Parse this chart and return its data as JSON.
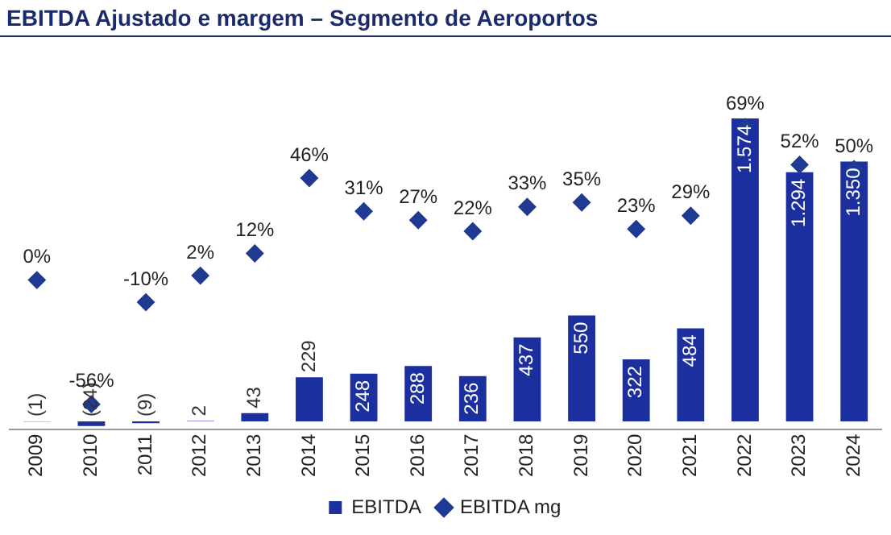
{
  "chart_data": {
    "type": "bar",
    "title": "EBITDA Ajustado e margem – Segmento de Aeroportos",
    "categories": [
      "2009",
      "2010",
      "2011",
      "2012",
      "2013",
      "2014",
      "2015",
      "2016",
      "2017",
      "2018",
      "2019",
      "2020",
      "2021",
      "2022",
      "2023",
      "2024"
    ],
    "series": [
      {
        "name": "EBITDA",
        "color": "#1c2f9e",
        "values": [
          -1,
          -24,
          -9,
          2,
          43,
          229,
          248,
          288,
          236,
          437,
          550,
          322,
          484,
          1574,
          1294,
          1350
        ],
        "value_labels": [
          "(1)",
          "(24)",
          "(9)",
          "2",
          "43",
          "229",
          "248",
          "288",
          "236",
          "437",
          "550",
          "322",
          "484",
          "1.574",
          "1.294",
          "1.350"
        ]
      },
      {
        "name": "EBITDA mg",
        "type": "scatter",
        "axis": "y2",
        "color": "#1f3a93",
        "values": [
          0,
          -56,
          -10,
          2,
          12,
          46,
          31,
          27,
          22,
          33,
          35,
          23,
          29,
          69,
          52,
          50
        ],
        "value_labels": [
          "0%",
          "-56%",
          "-10%",
          "2%",
          "12%",
          "46%",
          "31%",
          "27%",
          "22%",
          "33%",
          "35%",
          "23%",
          "29%",
          "69%",
          "52%",
          "50%"
        ]
      }
    ],
    "marker": "diamond",
    "legend": "bottom",
    "grid": false
  }
}
